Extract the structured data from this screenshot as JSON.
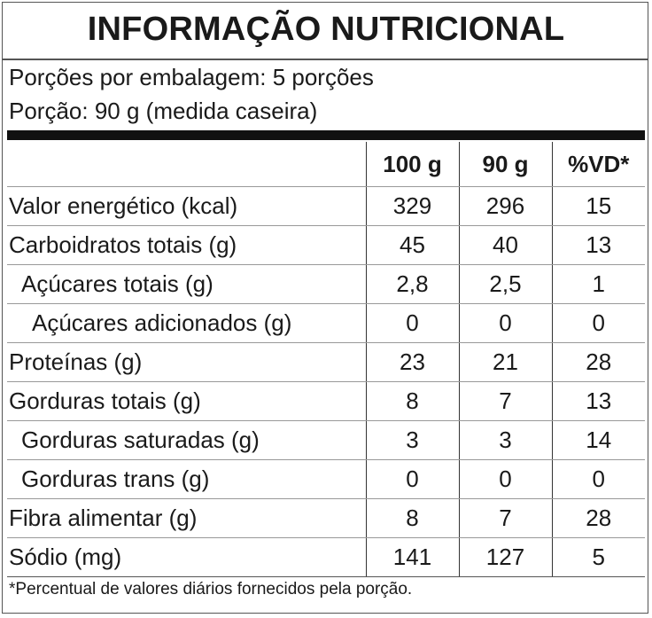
{
  "header": {
    "title": "INFORMAÇÃO NUTRICIONAL",
    "servings_per_package": "Porções por embalagem: 5 porções",
    "serving_size": "Porção: 90 g (medida caseira)"
  },
  "table": {
    "columns": [
      "100 g",
      "90 g",
      "%VD*"
    ],
    "rows": [
      [
        "Valor energético (kcal)",
        329,
        296,
        15
      ],
      [
        "Carboidratos totais (g)",
        45,
        40,
        13
      ],
      [
        "Açúcares totais (g)",
        "2,8",
        "2,5",
        1
      ],
      [
        "Açúcares adicionados (g)",
        0,
        0,
        0
      ],
      [
        "Proteínas (g)",
        23,
        21,
        28
      ],
      [
        "Gorduras totais (g)",
        8,
        7,
        13
      ],
      [
        "Gorduras saturadas (g)",
        3,
        3,
        14
      ],
      [
        "Gorduras trans (g)",
        0,
        0,
        0
      ],
      [
        "Fibra alimentar (g)",
        8,
        7,
        28
      ],
      [
        "Sódio (mg)",
        141,
        127,
        5
      ]
    ]
  },
  "footnote": "*Percentual de valores diários fornecidos pela porção."
}
